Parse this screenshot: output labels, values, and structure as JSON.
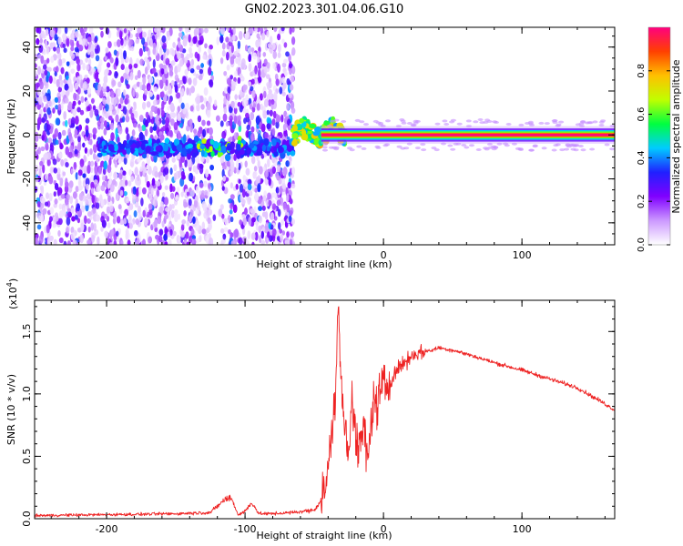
{
  "title": "GN02.2023.301.04.06.G10",
  "chart_data": [
    {
      "type": "heatmap",
      "xlabel": "Height of straight line (km)",
      "ylabel": "Frequency (Hz)",
      "xlim": [
        -252,
        167
      ],
      "ylim": [
        -50,
        49
      ],
      "xticks": [
        -200,
        -100,
        0,
        100
      ],
      "xtick_labels": [
        "-200",
        "-100",
        "0",
        "100"
      ],
      "yticks": [
        -40,
        -20,
        0,
        20,
        40
      ],
      "ytick_labels": [
        "-40",
        "-20",
        "0",
        "20",
        "40"
      ],
      "colorbar": {
        "label": "Normalized spectral amplitude",
        "range": [
          0,
          1
        ],
        "ticks": [
          0.0,
          0.2,
          0.4,
          0.6,
          0.8
        ],
        "tick_labels": [
          "0.0",
          "0.2",
          "0.4",
          "0.6",
          "0.8"
        ],
        "colors": [
          "#ffffff",
          "#cc99ff",
          "#8000ff",
          "#2020ff",
          "#00ccff",
          "#00ff40",
          "#c0ff00",
          "#ffc000",
          "#ff4000",
          "#ff0080"
        ]
      },
      "features": {
        "noise_region_x": [
          -252,
          -65
        ],
        "noise_gap_x": [
          -124,
          -117
        ],
        "carrier_frequency": 0,
        "carrier_start_x": -45,
        "carrier_amplitude": 1.0,
        "transition_x": [
          -65,
          -28
        ]
      }
    },
    {
      "type": "line",
      "xlabel": "Height of straight line (km)",
      "ylabel": "SNR (10 * v/v)",
      "scale_label": "(x10",
      "scale_exponent": "4",
      "xlim": [
        -252,
        167
      ],
      "ylim": [
        0,
        17500
      ],
      "xticks": [
        -200,
        -100,
        0,
        100
      ],
      "xtick_labels": [
        "-200",
        "-100",
        "0",
        "100"
      ],
      "yticks": [
        0,
        5000,
        10000,
        15000
      ],
      "ytick_labels": [
        "0.0",
        "0.5",
        "1.0",
        "1.5"
      ],
      "line_color": "#ee2222",
      "series": [
        {
          "x": [
            -252,
            -220,
            -180,
            -150,
            -125,
            -115,
            -110,
            -105,
            -100,
            -95,
            -90,
            -80,
            -65,
            -50,
            -45,
            -40,
            -38,
            -35,
            -33,
            -31,
            -29,
            -27,
            -25,
            -23,
            -20,
            -18,
            -15,
            -13,
            -11,
            -9,
            -7,
            -5,
            -3,
            0,
            5,
            10,
            15,
            20,
            25,
            30,
            35,
            40,
            45,
            50,
            60,
            80,
            100,
            120,
            140,
            160,
            167
          ],
          "y": [
            250,
            300,
            350,
            400,
            500,
            1500,
            1700,
            300,
            600,
            1300,
            400,
            400,
            500,
            700,
            1500,
            3500,
            6500,
            9000,
            17000,
            12000,
            8000,
            7000,
            5000,
            10500,
            6500,
            5000,
            7500,
            6000,
            4500,
            8000,
            9500,
            9000,
            10000,
            10500,
            11000,
            12000,
            12500,
            13000,
            13300,
            13400,
            13500,
            13700,
            13600,
            13500,
            13200,
            12500,
            11900,
            11200,
            10500,
            9200,
            8700
          ]
        }
      ]
    }
  ]
}
